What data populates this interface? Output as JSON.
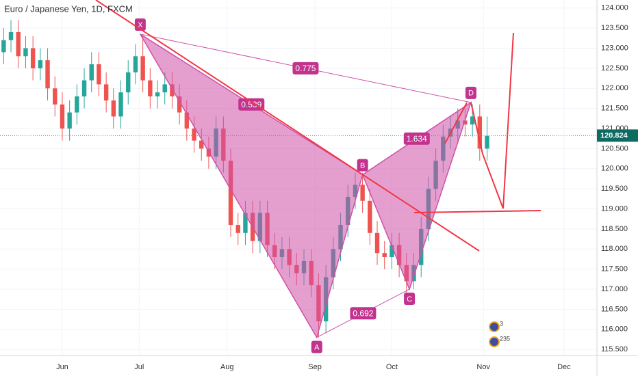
{
  "chart_data": {
    "type": "candlestick",
    "title": "Euro / Japanese Yen, 1D, FXCM",
    "x": [
      1,
      3,
      5,
      7,
      9,
      11,
      13,
      15,
      17,
      19,
      21,
      23,
      25,
      27,
      29,
      31,
      33,
      35,
      37,
      39,
      41,
      43,
      45,
      47,
      49,
      51,
      53,
      55,
      57,
      59,
      61,
      63,
      65,
      67,
      69,
      71,
      73,
      75,
      77,
      79,
      81,
      83,
      85,
      87,
      89,
      91,
      93,
      95,
      97,
      99,
      101,
      103,
      105,
      107,
      109,
      111,
      113,
      115,
      117,
      119,
      121,
      123,
      125,
      127,
      129,
      131,
      133
    ],
    "open": [
      122.9,
      123.2,
      123.4,
      122.8,
      123.0,
      122.5,
      122.7,
      122.0,
      121.6,
      121.0,
      121.4,
      121.8,
      122.2,
      122.6,
      122.1,
      121.7,
      121.3,
      121.9,
      122.4,
      122.8,
      122.2,
      121.8,
      121.9,
      122.1,
      121.8,
      121.4,
      121.0,
      120.7,
      120.5,
      120.3,
      121.0,
      120.2,
      118.6,
      118.4,
      118.9,
      118.2,
      118.9,
      118.1,
      117.8,
      118.0,
      117.6,
      117.4,
      117.7,
      117.1,
      116.2,
      117.3,
      118.0,
      118.6,
      119.3,
      119.6,
      119.2,
      118.4,
      117.9,
      117.8,
      118.1,
      117.6,
      117.2,
      117.6,
      118.5,
      119.5,
      120.2,
      120.8,
      121.0,
      121.2,
      121.1,
      121.3,
      120.5
    ],
    "high": [
      123.5,
      123.7,
      123.7,
      123.3,
      123.3,
      123.0,
      123.0,
      122.3,
      121.9,
      121.7,
      122.1,
      122.5,
      122.9,
      122.9,
      122.4,
      122.0,
      122.2,
      122.7,
      123.1,
      123.3,
      122.5,
      122.2,
      122.4,
      122.4,
      122.1,
      121.7,
      121.3,
      121.0,
      120.8,
      121.3,
      121.3,
      120.5,
      118.9,
      119.2,
      119.2,
      119.2,
      119.2,
      118.4,
      118.3,
      118.3,
      117.9,
      118.0,
      118.0,
      117.4,
      117.6,
      118.3,
      118.9,
      119.6,
      119.9,
      119.9,
      119.5,
      118.7,
      118.2,
      118.4,
      118.4,
      117.9,
      117.9,
      118.8,
      119.8,
      120.5,
      121.1,
      121.3,
      121.5,
      121.5,
      121.6,
      121.6,
      121.3
    ],
    "low": [
      122.6,
      122.9,
      122.5,
      122.5,
      122.2,
      122.2,
      121.7,
      121.3,
      120.7,
      120.7,
      121.1,
      121.5,
      121.9,
      121.8,
      121.4,
      121.0,
      121.0,
      121.6,
      122.1,
      121.9,
      121.5,
      121.5,
      121.6,
      121.5,
      121.1,
      120.7,
      120.4,
      120.2,
      120.0,
      120.0,
      119.9,
      118.3,
      118.1,
      118.1,
      117.9,
      117.9,
      117.8,
      117.5,
      117.5,
      117.3,
      117.1,
      117.1,
      116.8,
      115.8,
      115.9,
      117.0,
      117.7,
      118.3,
      119.0,
      118.9,
      118.1,
      117.6,
      117.5,
      117.5,
      117.3,
      116.9,
      117.0,
      117.3,
      118.2,
      119.2,
      119.9,
      120.5,
      120.7,
      120.8,
      120.8,
      120.2,
      120.2
    ],
    "close": [
      123.2,
      123.4,
      122.8,
      123.0,
      122.5,
      122.7,
      122.0,
      121.6,
      121.0,
      121.4,
      121.8,
      122.2,
      122.6,
      122.1,
      121.7,
      121.3,
      121.9,
      122.4,
      122.8,
      122.2,
      121.8,
      121.9,
      122.1,
      121.8,
      121.4,
      121.0,
      120.7,
      120.5,
      120.3,
      121.0,
      120.2,
      118.6,
      118.4,
      118.9,
      118.2,
      118.9,
      118.1,
      117.8,
      118.0,
      117.6,
      117.4,
      117.7,
      117.1,
      116.2,
      117.3,
      118.0,
      118.6,
      119.3,
      119.6,
      119.2,
      118.4,
      117.9,
      117.8,
      118.1,
      117.6,
      117.2,
      117.6,
      118.5,
      119.5,
      120.2,
      120.8,
      121.0,
      121.2,
      121.1,
      121.3,
      120.5,
      120.82
    ],
    "up_color": "#26a69a",
    "down_color": "#ef5350",
    "last_price": {
      "value": 120.824,
      "label": "120.824"
    },
    "xlim": [
      0,
      163
    ],
    "ylim": [
      115.35,
      124.2
    ],
    "xticks": [
      {
        "value": 17,
        "label": "Jun"
      },
      {
        "value": 38,
        "label": "Jul"
      },
      {
        "value": 62,
        "label": "Aug"
      },
      {
        "value": 86,
        "label": "Sep"
      },
      {
        "value": 107,
        "label": "Oct"
      },
      {
        "value": 132,
        "label": "Nov"
      },
      {
        "value": 154,
        "label": "Dec"
      }
    ],
    "yticks": [
      {
        "value": 115.5,
        "label": "115.500"
      },
      {
        "value": 116,
        "label": "116.000"
      },
      {
        "value": 116.5,
        "label": "116.500"
      },
      {
        "value": 117,
        "label": "117.000"
      },
      {
        "value": 117.5,
        "label": "117.500"
      },
      {
        "value": 118,
        "label": "118.000"
      },
      {
        "value": 118.5,
        "label": "118.500"
      },
      {
        "value": 119,
        "label": "119.000"
      },
      {
        "value": 119.5,
        "label": "119.500"
      },
      {
        "value": 120,
        "label": "120.000"
      },
      {
        "value": 120.5,
        "label": "120.500"
      },
      {
        "value": 121,
        "label": "121.000"
      },
      {
        "value": 121.5,
        "label": "121.500"
      },
      {
        "value": 122,
        "label": "122.000"
      },
      {
        "value": 122.5,
        "label": "122.500"
      },
      {
        "value": 123,
        "label": "123.000"
      },
      {
        "value": 123.5,
        "label": "123.500"
      },
      {
        "value": 124,
        "label": "124.000"
      }
    ],
    "grid": true,
    "pattern": {
      "color": "#d050a8",
      "points": [
        {
          "label": "X",
          "x": 38.3,
          "y": 123.35
        },
        {
          "label": "A",
          "x": 86.5,
          "y": 115.8
        },
        {
          "label": "B",
          "x": 99,
          "y": 119.85
        },
        {
          "label": "C",
          "x": 111.8,
          "y": 117.0
        },
        {
          "label": "D",
          "x": 128.6,
          "y": 121.65
        }
      ],
      "ratios": [
        {
          "value": 0.539,
          "from": 0,
          "to": 2
        },
        {
          "value": 0.775,
          "from": 0,
          "to": 4
        },
        {
          "value": 1.634,
          "from": 2,
          "to": 4
        },
        {
          "value": 0.692,
          "from": 1,
          "to": 3
        }
      ]
    },
    "badges": [
      "3",
      "235"
    ]
  }
}
